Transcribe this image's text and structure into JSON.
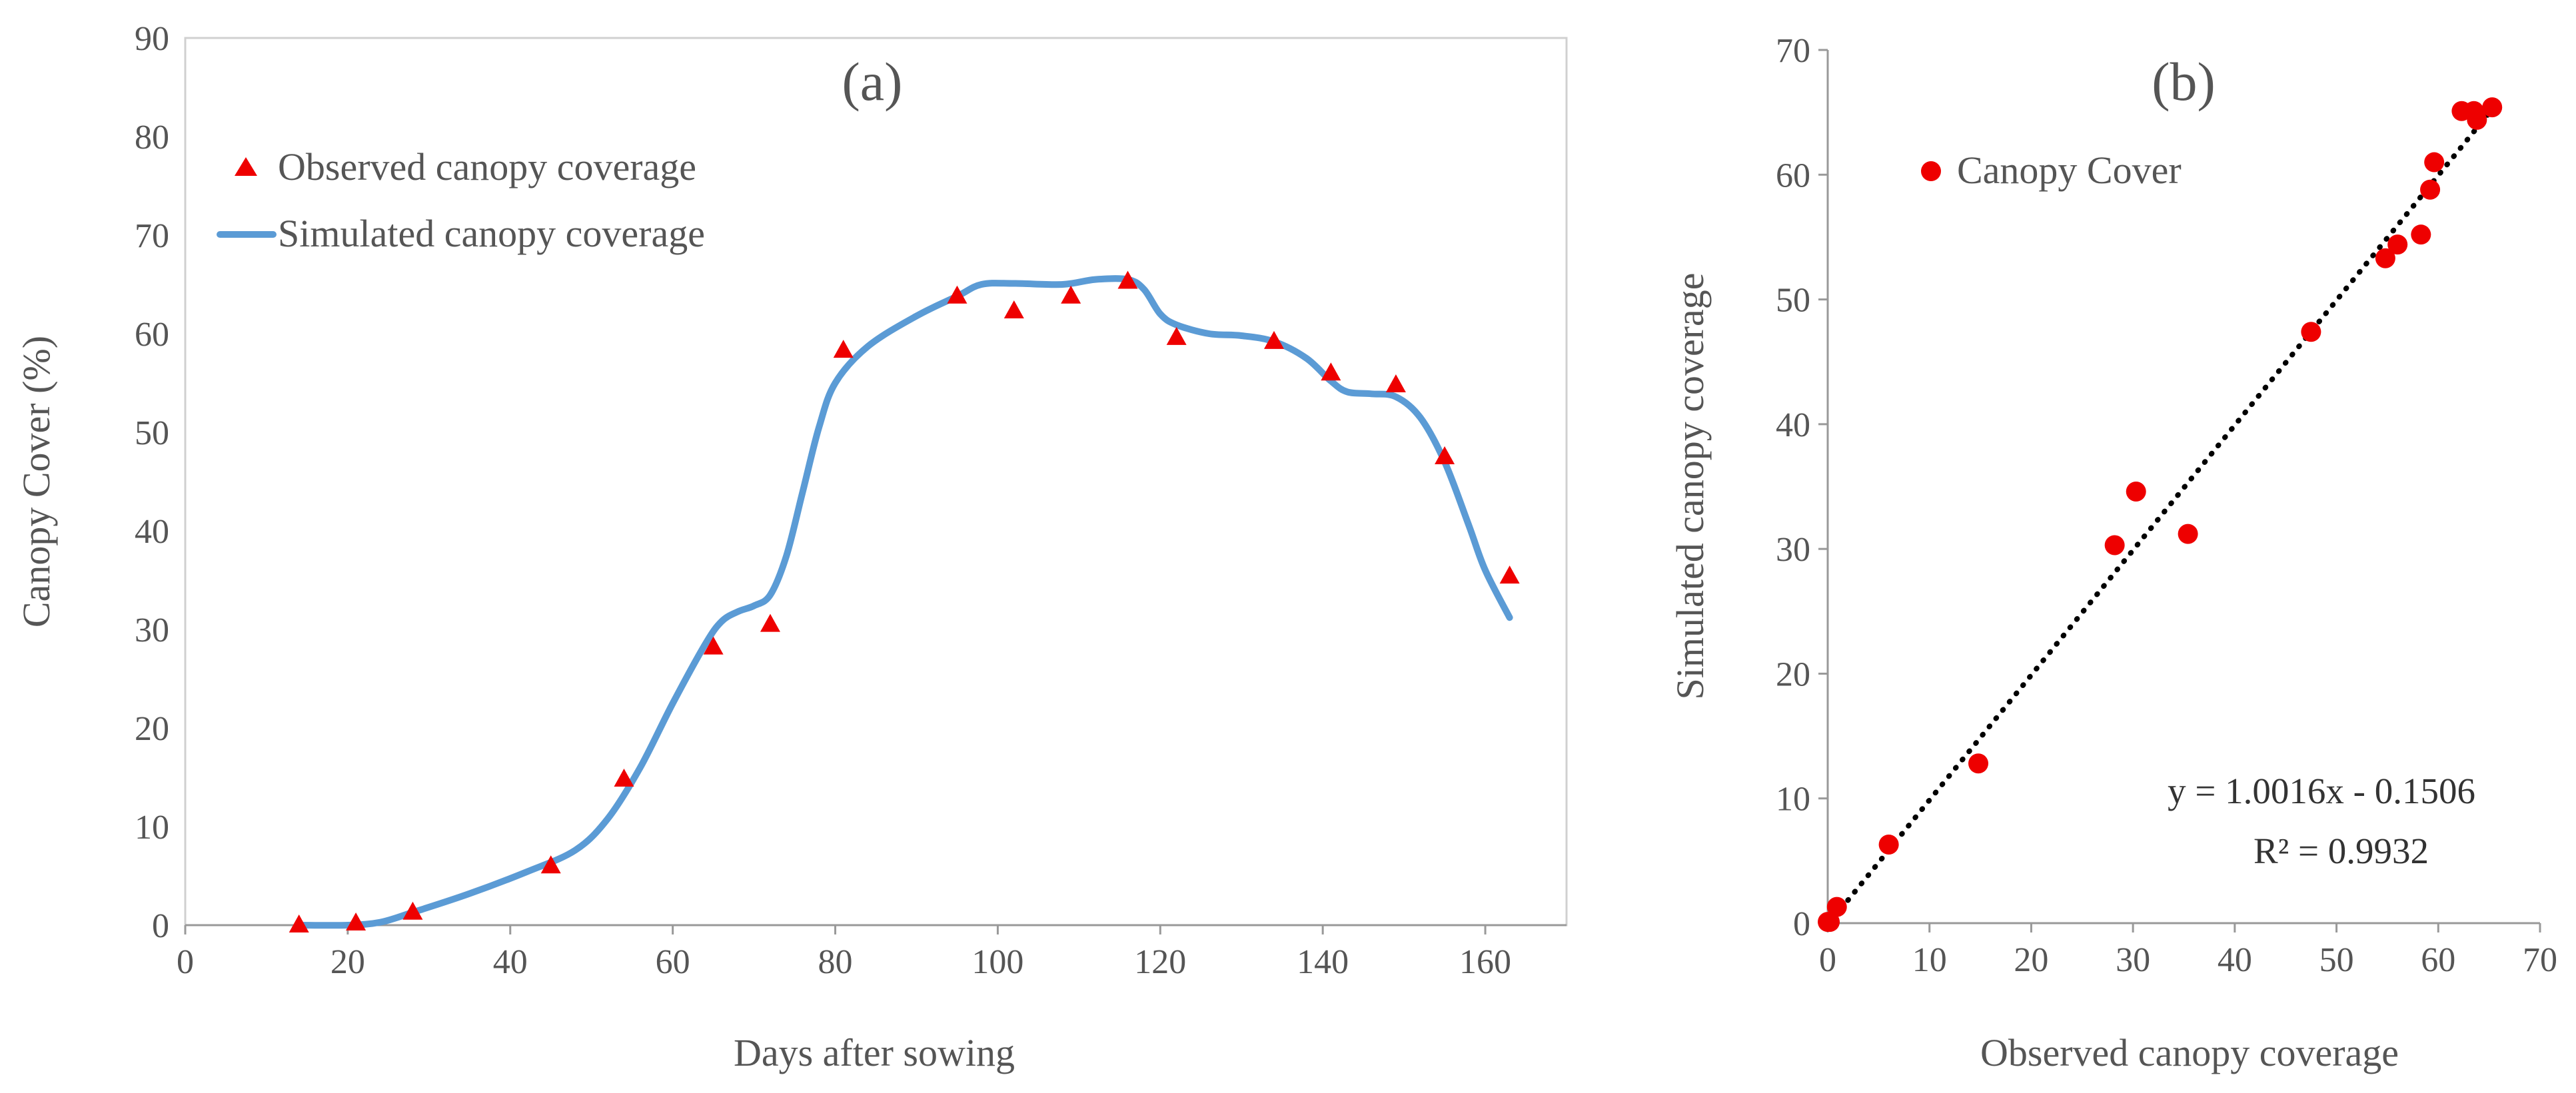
{
  "chart_data": [
    {
      "id": "a",
      "type": "line+scatter",
      "panel_label": "(a)",
      "xlabel": "Days after sowing",
      "ylabel": "Canopy Cover (%)",
      "xlim": [
        0,
        170
      ],
      "ylim": [
        0,
        90
      ],
      "xticks": [
        0,
        20,
        40,
        60,
        80,
        100,
        120,
        140,
        160
      ],
      "yticks": [
        0,
        10,
        20,
        30,
        40,
        50,
        60,
        70,
        80,
        90
      ],
      "legend_position": "top-left",
      "colors": {
        "observed": "#ee0000",
        "simulated": "#5b9bd5"
      },
      "series": [
        {
          "name": "Observed canopy coverage",
          "kind": "scatter",
          "marker": "triangle",
          "x": [
            14,
            21,
            28,
            45,
            54,
            65,
            72,
            81,
            95,
            102,
            109,
            116,
            122,
            134,
            141,
            149,
            155,
            163
          ],
          "y": [
            0,
            0.2,
            1.3,
            6.0,
            14.8,
            28.2,
            30.5,
            58.3,
            63.8,
            62.3,
            63.8,
            65.3,
            59.6,
            59.2,
            56.0,
            54.8,
            47.5,
            35.4
          ]
        },
        {
          "name": "Simulated canopy coverage",
          "kind": "line",
          "x": [
            14,
            20,
            24,
            28,
            35,
            42,
            48,
            52,
            56,
            60,
            64,
            66,
            68,
            70,
            72,
            74,
            76,
            78,
            80,
            84,
            90,
            95,
            98,
            102,
            108,
            112,
            116,
            118,
            120,
            122,
            126,
            130,
            134,
            138,
            141,
            143,
            146,
            149,
            152,
            155,
            158,
            160,
            163
          ],
          "y": [
            0,
            0,
            0.3,
            1.3,
            3.2,
            5.4,
            7.6,
            10.8,
            16.0,
            22.5,
            28.5,
            30.8,
            31.8,
            32.4,
            33.5,
            37.5,
            44.0,
            50.5,
            55.0,
            58.7,
            61.8,
            63.8,
            65.0,
            65.1,
            65.0,
            65.5,
            65.5,
            64.5,
            62.0,
            60.9,
            60.0,
            59.8,
            59.2,
            57.5,
            55.2,
            54.1,
            53.9,
            53.6,
            51.5,
            47.0,
            40.5,
            36.0,
            31.2
          ]
        }
      ]
    },
    {
      "id": "b",
      "type": "scatter",
      "panel_label": "(b)",
      "xlabel": "Observed canopy coverage",
      "ylabel": "Simulated canopy coverage",
      "xlim": [
        0,
        70
      ],
      "ylim": [
        0,
        70
      ],
      "xticks": [
        0,
        10,
        20,
        30,
        40,
        50,
        60,
        70
      ],
      "yticks": [
        0,
        10,
        20,
        30,
        40,
        50,
        60,
        70
      ],
      "legend_position": "top-left",
      "colors": {
        "points": "#ee0000",
        "trendline": "#000000"
      },
      "series": [
        {
          "name": "Canopy Cover",
          "kind": "scatter",
          "marker": "circle",
          "x": [
            0,
            0.2,
            0.9,
            6.0,
            14.8,
            28.2,
            30.3,
            35.4,
            47.5,
            54.8,
            56.0,
            58.3,
            59.2,
            59.6,
            62.3,
            63.5,
            63.8,
            65.3
          ],
          "y": [
            0.1,
            0.1,
            1.3,
            6.3,
            12.8,
            30.3,
            34.6,
            31.2,
            47.4,
            53.3,
            54.4,
            55.2,
            58.8,
            61.0,
            65.1,
            65.1,
            64.4,
            65.4
          ]
        }
      ],
      "trendline": {
        "style": "dotted",
        "slope": 1.0016,
        "intercept": -0.1506,
        "x_range": [
          0,
          65.3
        ],
        "equation": "y = 1.0016x - 0.1506",
        "r_squared": "R² = 0.9932"
      }
    }
  ]
}
